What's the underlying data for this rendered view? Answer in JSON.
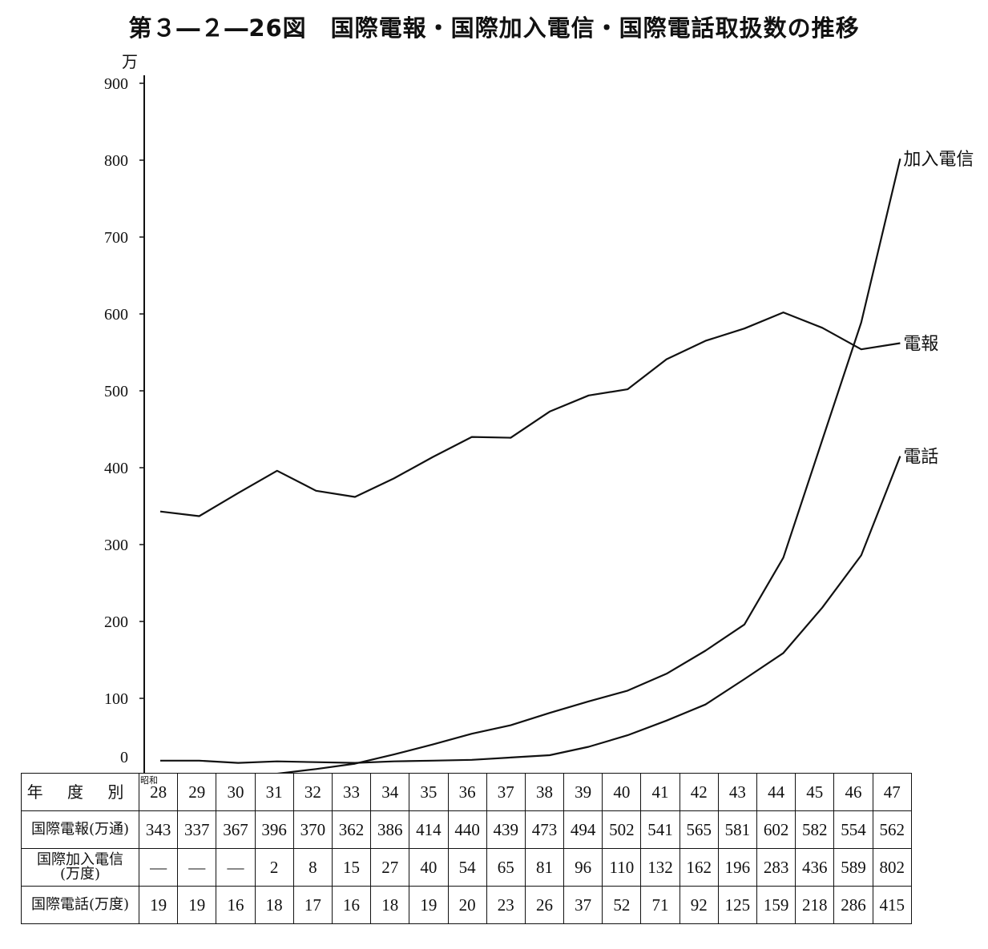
{
  "title": "第３―２―26図　国際電報・国際加入電信・国際電話取扱数の推移",
  "chart_data": {
    "type": "line",
    "title": "第３―２―26図　国際電報・国際加入電信・国際電話取扱数の推移",
    "unit": "万",
    "y_ticks": [
      "0",
      "100",
      "200",
      "300",
      "400",
      "500",
      "600",
      "700",
      "800",
      "900"
    ],
    "ylim": [
      0,
      900
    ],
    "era_note": "昭和",
    "x": [
      "28",
      "29",
      "30",
      "31",
      "32",
      "33",
      "34",
      "35",
      "36",
      "37",
      "38",
      "39",
      "40",
      "41",
      "42",
      "43",
      "44",
      "45",
      "46",
      "47"
    ],
    "series": [
      {
        "name": "電報",
        "values": [
          343,
          337,
          367,
          396,
          370,
          362,
          386,
          414,
          440,
          439,
          473,
          494,
          502,
          541,
          565,
          581,
          602,
          582,
          554,
          562
        ]
      },
      {
        "name": "加入電信",
        "values": [
          null,
          null,
          null,
          2,
          8,
          15,
          27,
          40,
          54,
          65,
          81,
          96,
          110,
          132,
          162,
          196,
          283,
          436,
          589,
          802
        ]
      },
      {
        "name": "電話",
        "values": [
          19,
          19,
          16,
          18,
          17,
          16,
          18,
          19,
          20,
          23,
          26,
          37,
          52,
          71,
          92,
          125,
          159,
          218,
          286,
          415
        ]
      }
    ],
    "grid": false,
    "legend": "labels at line ends"
  },
  "table": {
    "row_headers": {
      "year": "年 度 別",
      "telegram": "国際電報(万通)",
      "telex_line1": "国際加入電信",
      "telex_line2": "(万度)",
      "telephone": "国際電話(万度)"
    },
    "telegram": [
      "343",
      "337",
      "367",
      "396",
      "370",
      "362",
      "386",
      "414",
      "440",
      "439",
      "473",
      "494",
      "502",
      "541",
      "565",
      "581",
      "602",
      "582",
      "554",
      "562"
    ],
    "telex": [
      "—",
      "—",
      "—",
      "2",
      "8",
      "15",
      "27",
      "40",
      "54",
      "65",
      "81",
      "96",
      "110",
      "132",
      "162",
      "196",
      "283",
      "436",
      "589",
      "802"
    ],
    "telephone": [
      "19",
      "19",
      "16",
      "18",
      "17",
      "16",
      "18",
      "19",
      "20",
      "23",
      "26",
      "37",
      "52",
      "71",
      "92",
      "125",
      "159",
      "218",
      "286",
      "415"
    ]
  }
}
